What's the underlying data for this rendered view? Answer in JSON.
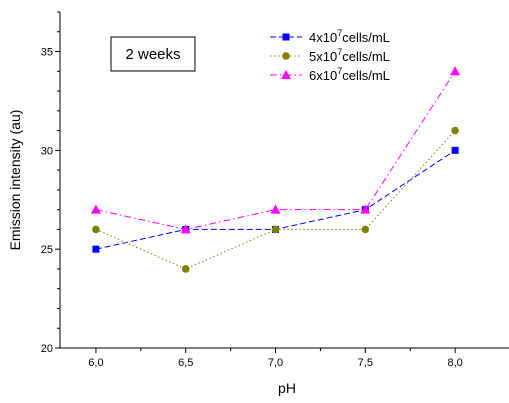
{
  "chart_data": {
    "type": "line",
    "xlabel": "pH",
    "ylabel": "Emission intensity (au)",
    "categories": [
      "6,0",
      "6,5",
      "7,0",
      "7,5",
      "8,0"
    ],
    "x": [
      6.0,
      6.5,
      7.0,
      7.5,
      8.0
    ],
    "xlim": [
      5.8,
      8.3
    ],
    "ylim": [
      20,
      37
    ],
    "yticks": [
      20,
      25,
      30,
      35
    ],
    "yticklabels": [
      "20",
      "25",
      "30",
      "35"
    ],
    "annotation": "2 weeks",
    "grid": false,
    "legend_position": "top-right",
    "series": [
      {
        "name_prefix": "4x10",
        "name_sup": "7",
        "name_suffix": "cells/mL",
        "values": [
          25,
          26,
          26,
          27,
          30
        ],
        "color": "#0000ff",
        "marker": "square",
        "dash": "6,3"
      },
      {
        "name_prefix": "5x10",
        "name_sup": "7",
        "name_suffix": "cells/mL",
        "values": [
          26,
          24,
          26,
          26,
          31
        ],
        "color": "#808000",
        "marker": "circle",
        "dash": "1.5,2.5"
      },
      {
        "name_prefix": "6x10",
        "name_sup": "7",
        "name_suffix": "cells/mL",
        "values": [
          27,
          26,
          27,
          27,
          34
        ],
        "color": "#ff00ff",
        "marker": "triangle",
        "dash": "7,3,1.5,3"
      }
    ]
  }
}
